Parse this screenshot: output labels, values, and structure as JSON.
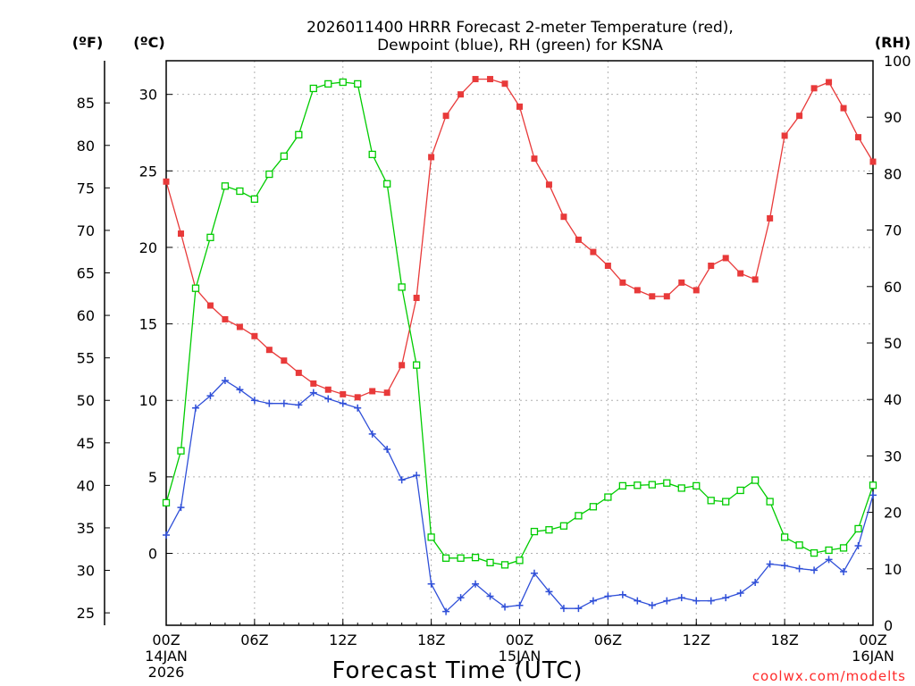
{
  "chart_data": {
    "type": "line",
    "title_line1": "2026011400 HRRR Forecast 2-meter Temperature (red),",
    "title_line2": "Dewpoint (blue), RH (green) for KSNA",
    "xlabel": "Forecast Time (UTC)",
    "credit": "coolwx.com/modelts",
    "units": {
      "fahrenheit": "(ºF)",
      "celsius": "(ºC)",
      "rh": "(RH)"
    },
    "x_hours": [
      0,
      1,
      2,
      3,
      4,
      5,
      6,
      7,
      8,
      9,
      10,
      11,
      12,
      13,
      14,
      15,
      16,
      17,
      18,
      19,
      20,
      21,
      22,
      23,
      24,
      25,
      26,
      27,
      28,
      29,
      30,
      31,
      32,
      33,
      34,
      35,
      36,
      37,
      38,
      39,
      40,
      41,
      42,
      43,
      44,
      45,
      46,
      47,
      48
    ],
    "xlim": [
      0,
      48
    ],
    "x_ticks": [
      {
        "hour": 0,
        "label": "00Z",
        "date": "14JAN",
        "year": "2026"
      },
      {
        "hour": 6,
        "label": "06Z"
      },
      {
        "hour": 12,
        "label": "12Z"
      },
      {
        "hour": 18,
        "label": "18Z"
      },
      {
        "hour": 24,
        "label": "00Z",
        "date": "15JAN"
      },
      {
        "hour": 30,
        "label": "06Z"
      },
      {
        "hour": 36,
        "label": "12Z"
      },
      {
        "hour": 42,
        "label": "18Z"
      },
      {
        "hour": 48,
        "label": "00Z",
        "date": "16JAN"
      }
    ],
    "celsius_axis": {
      "ylim": [
        -4.7,
        32.2
      ],
      "ticks": [
        "0",
        "5",
        "10",
        "15",
        "20",
        "25",
        "30"
      ]
    },
    "fahrenheit_axis": {
      "ticks": [
        "25",
        "30",
        "35",
        "40",
        "45",
        "50",
        "55",
        "60",
        "65",
        "70",
        "75",
        "80",
        "85"
      ]
    },
    "rh_axis": {
      "ylim": [
        0,
        100
      ],
      "ticks": [
        "0",
        "10",
        "20",
        "30",
        "40",
        "50",
        "60",
        "70",
        "80",
        "90",
        "100"
      ]
    },
    "series": [
      {
        "name": "Temperature",
        "units": "C",
        "color": "#e83a3a",
        "marker": "filled-square",
        "values": [
          24.3,
          20.9,
          17.3,
          16.2,
          15.3,
          14.8,
          14.2,
          13.3,
          12.6,
          11.8,
          11.1,
          10.7,
          10.4,
          10.2,
          10.6,
          10.5,
          12.3,
          16.7,
          25.9,
          28.6,
          30.0,
          31.0,
          31.0,
          30.7,
          29.2,
          25.8,
          24.1,
          22.0,
          20.5,
          19.7,
          18.8,
          17.7,
          17.2,
          16.8,
          16.8,
          17.7,
          17.2,
          18.8,
          19.3,
          18.3,
          17.9,
          21.9,
          27.3,
          28.6,
          30.4,
          30.8,
          29.1,
          27.2,
          25.6
        ]
      },
      {
        "name": "Dewpoint",
        "units": "C",
        "color": "#2f4fd8",
        "marker": "plus",
        "values": [
          1.2,
          3.0,
          9.5,
          10.3,
          11.3,
          10.7,
          10.0,
          9.8,
          9.8,
          9.7,
          10.5,
          10.1,
          9.8,
          9.5,
          7.8,
          6.8,
          4.8,
          5.1,
          -2.0,
          -3.8,
          -2.9,
          -2.0,
          -2.8,
          -3.5,
          -3.4,
          -1.3,
          -2.5,
          -3.6,
          -3.6,
          -3.1,
          -2.8,
          -2.7,
          -3.1,
          -3.4,
          -3.1,
          -2.9,
          -3.1,
          -3.1,
          -2.9,
          -2.6,
          -1.9,
          -0.7,
          -0.8,
          -1.0,
          -1.1,
          -0.4,
          -1.2,
          0.5,
          3.8
        ]
      },
      {
        "name": "RH",
        "units": "%",
        "color": "#00cc00",
        "marker": "open-square",
        "values": [
          21.7,
          30.9,
          59.7,
          68.7,
          77.8,
          76.9,
          75.5,
          79.9,
          83.1,
          86.9,
          95.1,
          95.9,
          96.2,
          95.9,
          83.4,
          78.2,
          59.9,
          46.1,
          15.6,
          11.9,
          11.9,
          12.0,
          11.1,
          10.7,
          11.5,
          16.6,
          16.9,
          17.6,
          19.4,
          21.0,
          22.7,
          24.7,
          24.8,
          24.9,
          25.2,
          24.3,
          24.7,
          22.1,
          21.9,
          23.9,
          25.7,
          21.9,
          15.6,
          14.2,
          12.8,
          13.3,
          13.7,
          17.1,
          24.8
        ]
      }
    ]
  }
}
